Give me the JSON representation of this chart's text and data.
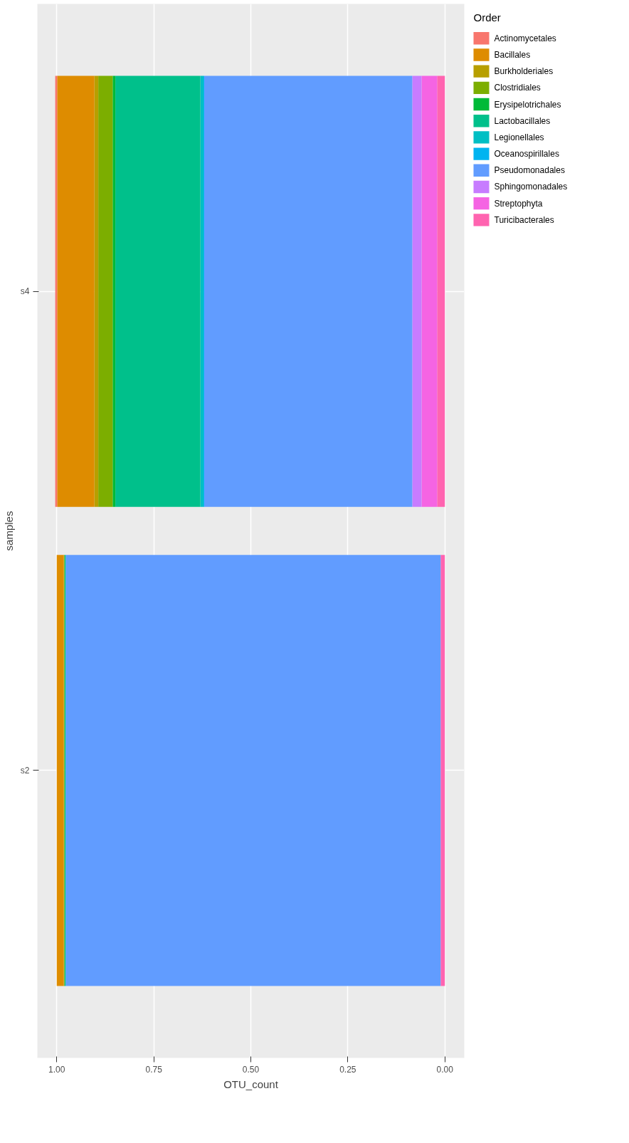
{
  "chart_data": {
    "type": "bar",
    "orientation": "horizontal",
    "stacked": true,
    "categories": [
      "s4",
      "s2"
    ],
    "xlabel": "OTU_count",
    "ylabel": "samples",
    "legend_title": "Order",
    "xlim": [
      1.05,
      -0.05
    ],
    "xticks": [
      {
        "value": 0,
        "label": "0.00"
      },
      {
        "value": 0.25,
        "label": "0.25"
      },
      {
        "value": 0.5,
        "label": "0.50"
      },
      {
        "value": 0.75,
        "label": "0.75"
      },
      {
        "value": 1,
        "label": "1.00"
      }
    ],
    "grid": true,
    "legend": "right",
    "series": [
      {
        "name": "Turicibacterales",
        "color": "#ff64b0",
        "values": [
          0.02,
          0.011
        ]
      },
      {
        "name": "Streptophyta",
        "color": "#f564e3",
        "values": [
          0.04,
          0
        ]
      },
      {
        "name": "Sphingomonadales",
        "color": "#c77cff",
        "values": [
          0.024,
          0
        ]
      },
      {
        "name": "Pseudomonadales",
        "color": "#619cff",
        "values": [
          0.536,
          0.966
        ]
      },
      {
        "name": "Oceanospirillales",
        "color": "#00b4f0",
        "values": [
          0.002,
          0
        ]
      },
      {
        "name": "Legionellales",
        "color": "#00bfc4",
        "values": [
          0.008,
          0
        ]
      },
      {
        "name": "Lactobacillales",
        "color": "#00c08b",
        "values": [
          0.219,
          0.003
        ]
      },
      {
        "name": "Erysipelotrichales",
        "color": "#00ba38",
        "values": [
          0.007,
          0
        ]
      },
      {
        "name": "Clostridiales",
        "color": "#7cae00",
        "values": [
          0.037,
          0.002
        ]
      },
      {
        "name": "Burkholderiales",
        "color": "#b79f00",
        "values": [
          0.01,
          0
        ]
      },
      {
        "name": "Bacillales",
        "color": "#de8c00",
        "values": [
          0.096,
          0.018
        ]
      },
      {
        "name": "Actinomycetales",
        "color": "#f8766d",
        "values": [
          0.005,
          0
        ]
      }
    ]
  }
}
